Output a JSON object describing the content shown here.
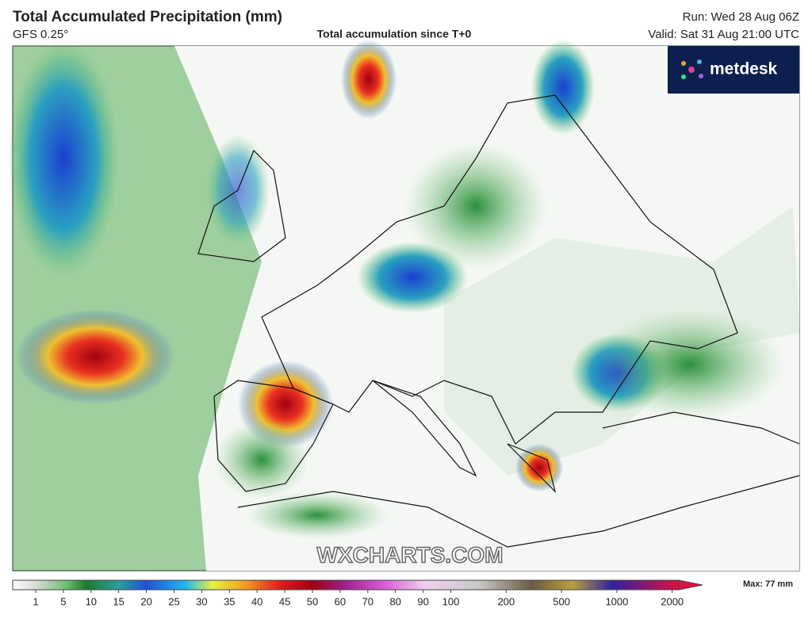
{
  "header": {
    "title": "Total Accumulated Precipitation (mm)",
    "model": "GFS 0.25°",
    "subtitle": "Total accumulation since T+0",
    "run": "Run: Wed 28 Aug 06Z",
    "valid": "Valid: Sat 31 Aug 21:00 UTC"
  },
  "logo": "metdesk",
  "watermark": "WXCHARTS.COM",
  "legend": {
    "max": "Max: 77 mm",
    "ticks": [
      1,
      5,
      10,
      15,
      20,
      25,
      30,
      35,
      40,
      45,
      50,
      60,
      70,
      80,
      90,
      100,
      200,
      500,
      1000,
      2000
    ]
  }
}
